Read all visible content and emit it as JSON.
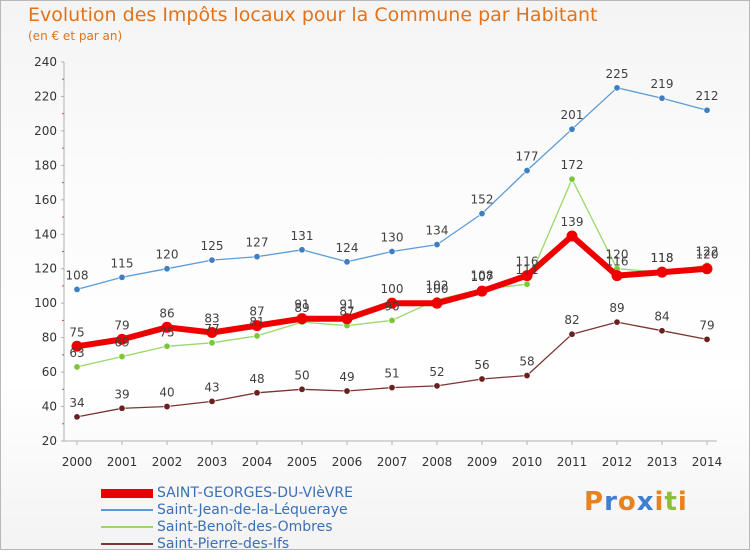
{
  "title": "Evolution des Impôts locaux pour la Commune par Habitant",
  "subtitle": "(en € et par an)",
  "logo": {
    "text": "Proxiti",
    "letters": [
      {
        "ch": "P",
        "color": "#e8821e"
      },
      {
        "ch": "r",
        "color": "#3f7fd0"
      },
      {
        "ch": "o",
        "color": "#e8821e"
      },
      {
        "ch": "x",
        "color": "#3f7fd0"
      },
      {
        "ch": "i",
        "color": "#e8821e"
      },
      {
        "ch": "t",
        "color": "#8cbf3a"
      },
      {
        "ch": "i",
        "color": "#e8821e"
      }
    ]
  },
  "chart_data": {
    "type": "line",
    "title": "Evolution des Impôts locaux pour la Commune par Habitant",
    "subtitle": "(en € et par an)",
    "xlabel": "",
    "ylabel": "",
    "ylim": [
      20,
      240
    ],
    "yticks": [
      20,
      40,
      60,
      80,
      100,
      120,
      140,
      160,
      180,
      200,
      220,
      240
    ],
    "grid": false,
    "legend_position": "bottom-left",
    "x": [
      "2000",
      "2001",
      "2002",
      "2003",
      "2004",
      "2005",
      "2006",
      "2007",
      "2008",
      "2009",
      "2010",
      "2011",
      "2012",
      "2013",
      "2014"
    ],
    "series": [
      {
        "name": "SAINT-GEORGES-DU-VIèVRE",
        "color": "#ee0000",
        "marker": "#ee0000",
        "width": 6,
        "values": [
          75,
          79,
          86,
          83,
          87,
          91,
          91,
          100,
          100,
          107,
          116,
          139,
          116,
          118,
          120
        ],
        "labels": [
          "75",
          "79",
          "86",
          "83",
          "87",
          "91",
          "91",
          "100",
          "100",
          "107",
          "116",
          "139",
          "116",
          "118",
          "120"
        ]
      },
      {
        "name": "Saint-Jean-de-la-Léqueraye",
        "color": "#5b9bd8",
        "marker": "#3e7fc2",
        "width": 1.3,
        "values": [
          108,
          115,
          120,
          125,
          127,
          131,
          124,
          130,
          134,
          152,
          177,
          201,
          225,
          219,
          212
        ],
        "labels": [
          "108",
          "115",
          "120",
          "125",
          "127",
          "131",
          "124",
          "130",
          "134",
          "152",
          "177",
          "201",
          "225",
          "219",
          "212"
        ]
      },
      {
        "name": "Saint-Benoît-des-Ombres",
        "color": "#9ad86a",
        "marker": "#7cc63c",
        "width": 1.3,
        "values": [
          63,
          69,
          75,
          77,
          81,
          89,
          87,
          90,
          102,
          108,
          111,
          172,
          120,
          118,
          122
        ],
        "labels": [
          "63",
          "69",
          "75",
          "77",
          "81",
          "89",
          "87",
          "90",
          "102",
          "108",
          "111",
          "172",
          "120",
          "118",
          "122"
        ]
      },
      {
        "name": "Saint-Pierre-des-Ifs",
        "color": "#7a3535",
        "marker": "#6b2020",
        "width": 1.3,
        "values": [
          34,
          39,
          40,
          43,
          48,
          50,
          49,
          51,
          52,
          56,
          58,
          82,
          89,
          84,
          79
        ],
        "labels": [
          "34",
          "39",
          "40",
          "43",
          "48",
          "50",
          "49",
          "51",
          "52",
          "56",
          "58",
          "82",
          "89",
          "84",
          "79"
        ]
      }
    ]
  }
}
